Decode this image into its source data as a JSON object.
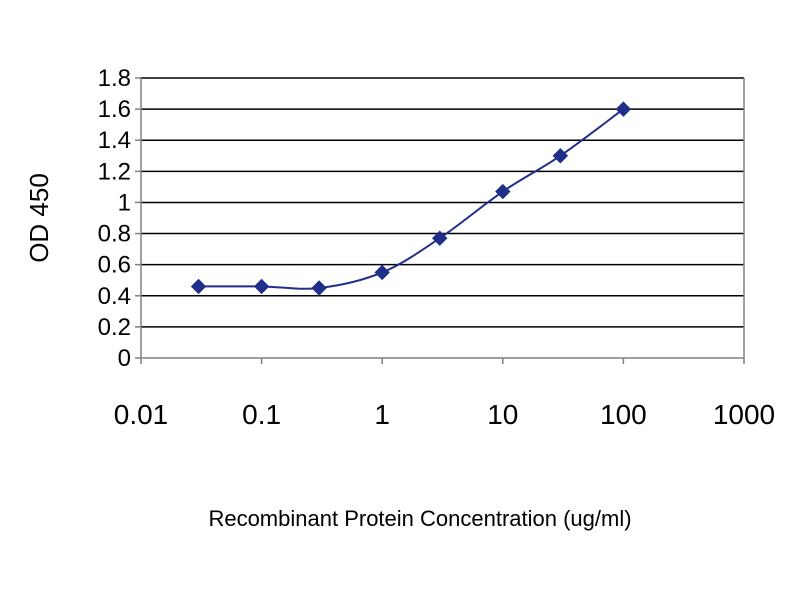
{
  "chart_data": {
    "type": "line",
    "title": "",
    "xlabel": "Recombinant Protein Concentration (ug/ml)",
    "ylabel": "OD 450",
    "x_scale": "log",
    "xlim": [
      0.01,
      1000
    ],
    "ylim": [
      0,
      1.8
    ],
    "x_ticks": [
      "0.01",
      "0.1",
      "1",
      "10",
      "100",
      "1000"
    ],
    "y_ticks": [
      "0",
      "0.2",
      "0.4",
      "0.6",
      "0.8",
      "1",
      "1.2",
      "1.4",
      "1.6",
      "1.8"
    ],
    "grid": "horizontal",
    "legend": "none",
    "series": [
      {
        "x": [
          0.03,
          0.1,
          0.3,
          1,
          3,
          10,
          30,
          100
        ],
        "y": [
          0.46,
          0.46,
          0.45,
          0.55,
          0.77,
          1.07,
          1.3,
          1.6
        ]
      }
    ],
    "colors": {
      "series": "#1f2f8a",
      "grid": "#000000",
      "axis": "#808080"
    }
  }
}
